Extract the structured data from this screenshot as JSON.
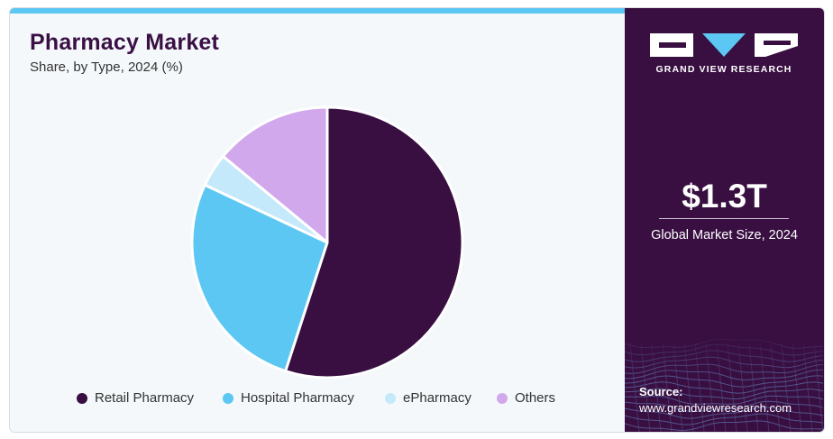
{
  "header": {
    "title": "Pharmacy Market",
    "subtitle": "Share, by Type, 2024 (%)"
  },
  "chart_data": {
    "type": "pie",
    "categories": [
      "Retail Pharmacy",
      "Hospital Pharmacy",
      "ePharmacy",
      "Others"
    ],
    "values": [
      55,
      27,
      4,
      14
    ],
    "colors": [
      "#390f42",
      "#5cc7f2",
      "#c4e9fa",
      "#d2a8ec"
    ],
    "title": "Pharmacy Market",
    "legend_position": "bottom"
  },
  "sidebar": {
    "logo_text": "GRAND VIEW RESEARCH",
    "market_value": "$1.3T",
    "market_label": "Global Market Size, 2024",
    "source_label": "Source:",
    "source_url": "www.grandviewresearch.com"
  },
  "colors": {
    "brand_dark": "#390f42",
    "accent": "#5cc7f2",
    "background": "#f4f8fb"
  }
}
